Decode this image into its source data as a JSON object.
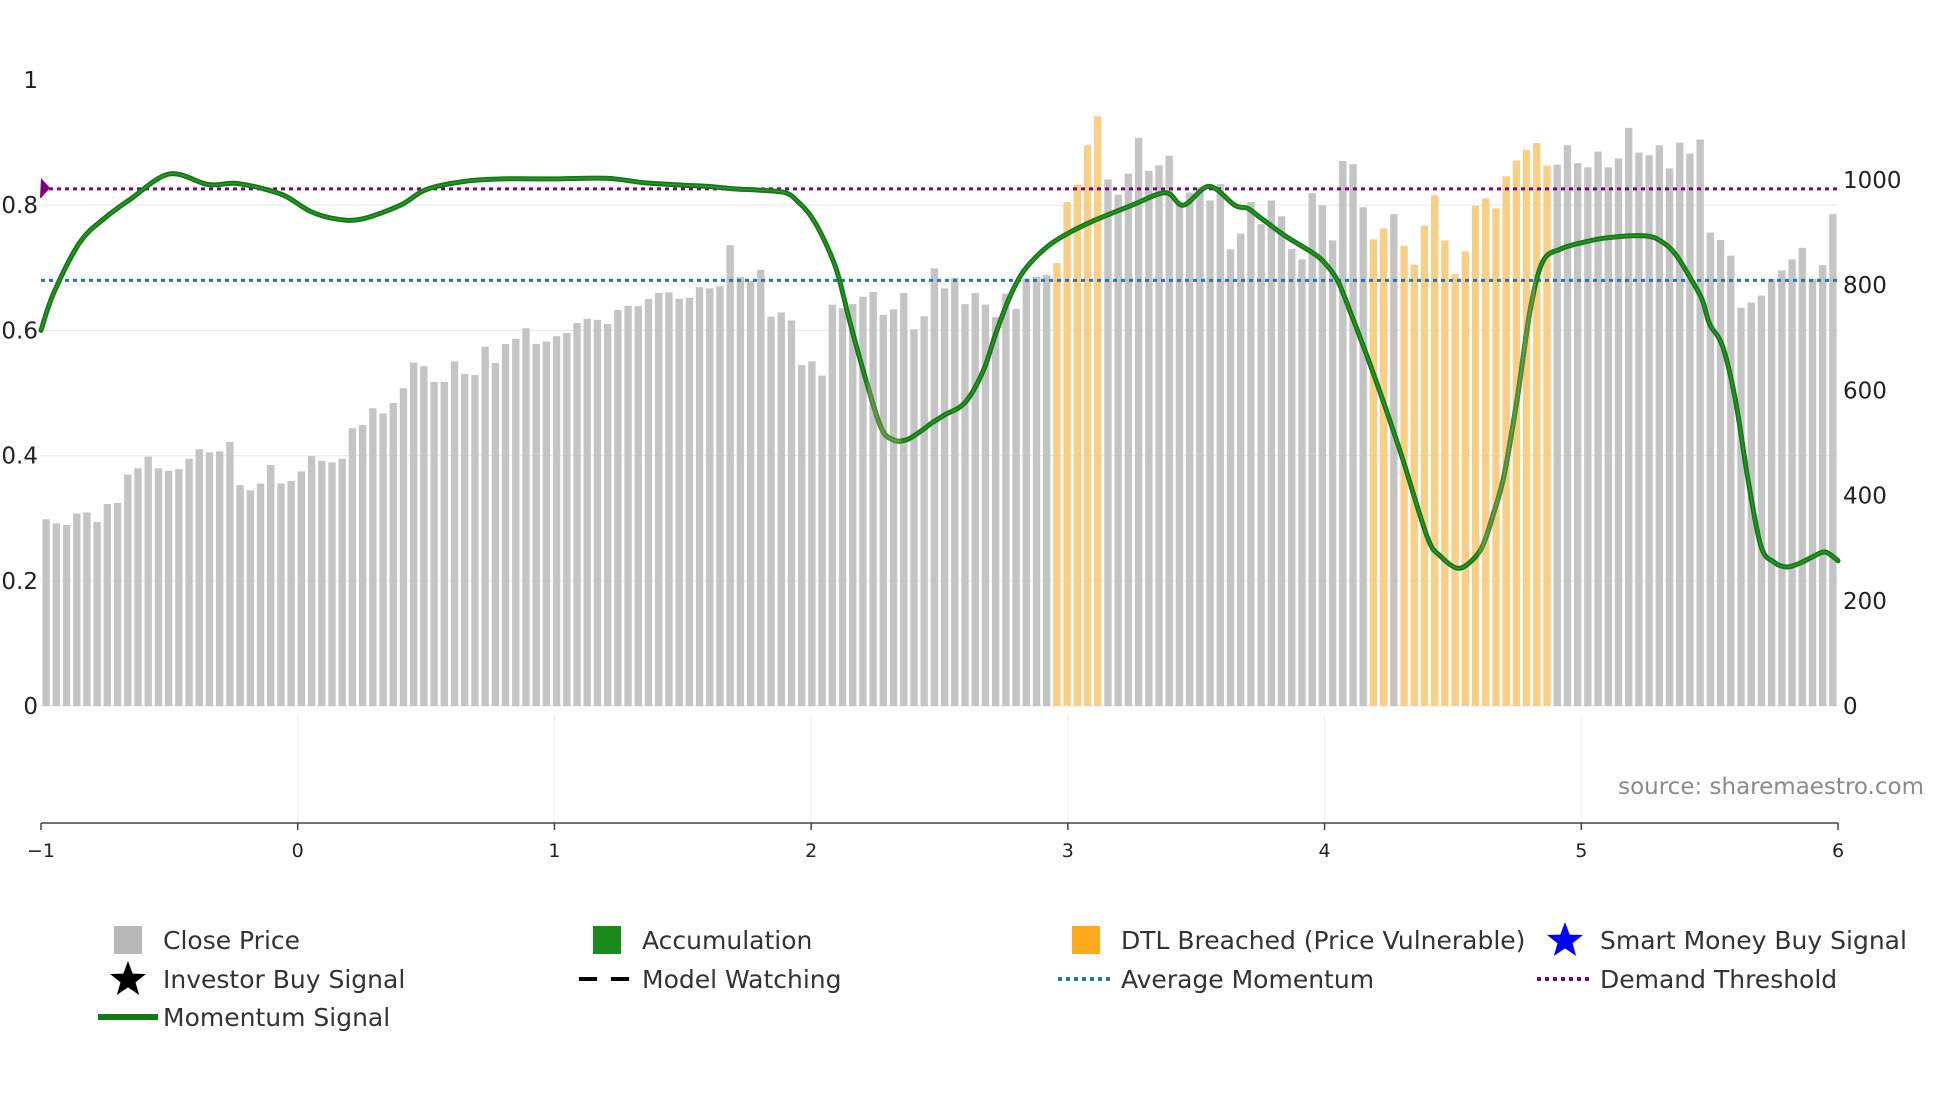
{
  "chart_data": {
    "type": "bar",
    "x_range": [
      -1,
      6
    ],
    "x_ticks": [
      "−1",
      "0",
      "1",
      "2",
      "3",
      "4",
      "5",
      "6"
    ],
    "y_left": {
      "range": [
        0,
        1
      ],
      "ticks": [
        "0",
        "0.2",
        "0.4",
        "0.6",
        "0.8",
        "1"
      ]
    },
    "y_right": {
      "range": [
        0,
        1190
      ],
      "ticks": [
        "0",
        "200",
        "400",
        "600",
        "800",
        "1000"
      ]
    },
    "source_text": "source: sharemaestro.com",
    "colors": {
      "close": "#c4c4c4",
      "dtl": "#f9cf85",
      "momentum": "#107c10",
      "momentum_accum": "#4d8a31",
      "avg": "#1f77b4",
      "demand": "#800080"
    },
    "series": [
      {
        "name": "Close Price",
        "axis": "right",
        "values": [
          355,
          347,
          344,
          366,
          368,
          350,
          384,
          386,
          440,
          452,
          474,
          452,
          447,
          450,
          470,
          488,
          482,
          484,
          502,
          420,
          410,
          423,
          458,
          423,
          428,
          446,
          475,
          466,
          463,
          470,
          528,
          534,
          566,
          556,
          576,
          604,
          653,
          646,
          616,
          616,
          655,
          631,
          629,
          683,
          652,
          688,
          698,
          718,
          688,
          693,
          703,
          709,
          728,
          736,
          734,
          726,
          753,
          761,
          760,
          774,
          785,
          786,
          774,
          776,
          796,
          794,
          798,
          876,
          815,
          808,
          829,
          740,
          748,
          733,
          648,
          655,
          628,
          763,
          756,
          764,
          778,
          787,
          743,
          754,
          785,
          716,
          741,
          832,
          794,
          814,
          764,
          785,
          763,
          739,
          784,
          755,
          812,
          816,
          819,
          842,
          958,
          991,
          1066,
          1121,
          1001,
          972,
          1012,
          1080,
          1017,
          1028,
          1046,
          956,
          976,
          986,
          961,
          992,
          868,
          898,
          958,
          916,
          961,
          931,
          869,
          849,
          975,
          952,
          885,
          1036,
          1030,
          948,
          887,
          908,
          935,
          875,
          839,
          913,
          971,
          885,
          821,
          864,
          951,
          965,
          946,
          1007,
          1037,
          1057,
          1070,
          1027,
          1029,
          1066,
          1032,
          1024,
          1054,
          1024,
          1041,
          1099,
          1052,
          1047,
          1066,
          1022,
          1071,
          1050,
          1077,
          900,
          886,
          856,
          757,
          767,
          780,
          812,
          828,
          849,
          871,
          812,
          838,
          935
        ]
      },
      {
        "name": "Momentum Signal",
        "axis": "left",
        "x": [
          -1,
          -0.95,
          -0.85,
          -0.75,
          -0.65,
          -0.5,
          -0.35,
          -0.25,
          -0.15,
          -0.05,
          0.05,
          0.15,
          0.25,
          0.4,
          0.5,
          0.65,
          0.8,
          1,
          1.2,
          1.35,
          1.5,
          1.6,
          1.7,
          1.8,
          1.9,
          1.95,
          2,
          2.05,
          2.1,
          2.15,
          2.2,
          2.27,
          2.32,
          2.37,
          2.42,
          2.47,
          2.52,
          2.6,
          2.67,
          2.72,
          2.77,
          2.82,
          2.87,
          2.93,
          3,
          3.1,
          3.25,
          3.38,
          3.45,
          3.55,
          3.65,
          3.7,
          3.75,
          3.85,
          3.95,
          4,
          4.05,
          4.1,
          4.2,
          4.3,
          4.4,
          4.45,
          4.52,
          4.58,
          4.62,
          4.66,
          4.7,
          4.75,
          4.8,
          4.85,
          4.92,
          5,
          5.1,
          5.25,
          5.32,
          5.37,
          5.42,
          5.47,
          5.5,
          5.55,
          5.6,
          5.65,
          5.7,
          5.75,
          5.8,
          5.85,
          5.9,
          5.95,
          6
        ],
        "values": [
          0.6,
          0.66,
          0.74,
          0.78,
          0.81,
          0.85,
          0.833,
          0.835,
          0.828,
          0.815,
          0.79,
          0.778,
          0.778,
          0.8,
          0.825,
          0.838,
          0.842,
          0.842,
          0.843,
          0.836,
          0.832,
          0.83,
          0.826,
          0.824,
          0.82,
          0.805,
          0.782,
          0.745,
          0.695,
          0.615,
          0.54,
          0.447,
          0.425,
          0.425,
          0.437,
          0.452,
          0.465,
          0.485,
          0.535,
          0.596,
          0.65,
          0.69,
          0.715,
          0.737,
          0.755,
          0.775,
          0.8,
          0.82,
          0.8,
          0.83,
          0.8,
          0.795,
          0.78,
          0.75,
          0.725,
          0.708,
          0.68,
          0.63,
          0.52,
          0.4,
          0.27,
          0.24,
          0.22,
          0.235,
          0.26,
          0.31,
          0.37,
          0.49,
          0.63,
          0.71,
          0.73,
          0.74,
          0.748,
          0.751,
          0.74,
          0.72,
          0.687,
          0.65,
          0.61,
          0.575,
          0.49,
          0.36,
          0.255,
          0.23,
          0.222,
          0.228,
          0.238,
          0.246,
          0.232
        ]
      }
    ],
    "dtl_breached_ranges": [
      [
        99,
        103
      ],
      [
        130,
        131
      ],
      [
        133,
        147
      ]
    ],
    "accumulation_x_ranges": [
      [
        2.22,
        2.35
      ],
      [
        4.6,
        4.82
      ]
    ],
    "average_momentum": 0.68,
    "demand_threshold": 0.826,
    "legend": {
      "close_price": "Close Price",
      "accumulation": "Accumulation",
      "dtl_breached": "DTL Breached (Price Vulnerable)",
      "smart_money": "Smart Money Buy Signal",
      "investor_buy": "Investor Buy Signal",
      "model_watching": "Model Watching",
      "average_momentum": "Average Momentum",
      "demand_threshold": "Demand Threshold",
      "momentum_signal": "Momentum Signal"
    }
  }
}
